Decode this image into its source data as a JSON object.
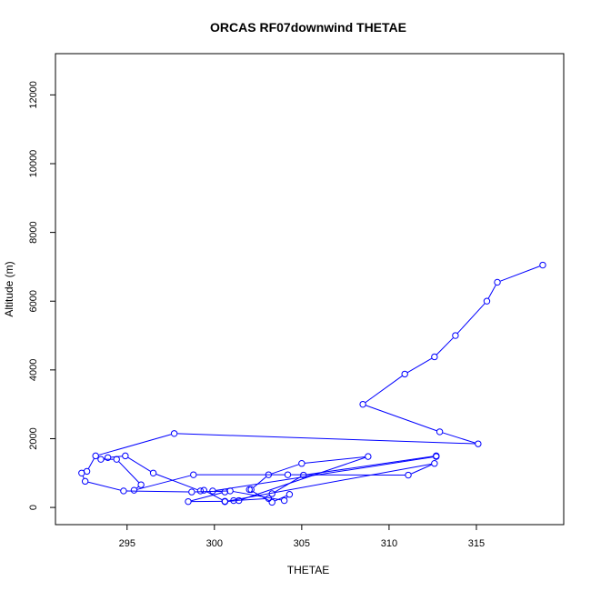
{
  "chart_data": {
    "type": "line",
    "title": "ORCAS RF07downwind THETAE",
    "xlabel": "THETAE",
    "ylabel": "Altitude (m)",
    "xlim": [
      290.9,
      320.0
    ],
    "ylim": [
      -500,
      13200
    ],
    "xticks": [
      295,
      300,
      305,
      310,
      315
    ],
    "yticks": [
      0,
      2000,
      4000,
      6000,
      8000,
      10000,
      12000
    ],
    "series_color": "#0000ff",
    "series": [
      {
        "markers": "open-circle",
        "x": [
          318.8,
          316.2,
          315.6,
          313.8,
          312.6,
          310.9,
          308.5,
          312.9,
          315.1,
          297.7,
          293.2,
          292.7,
          292.4,
          292.6,
          294.8,
          298.7,
          300.9,
          304.0,
          304.3,
          303.3,
          302.0,
          302.1,
          303.1,
          305.0,
          308.8,
          301.4,
          300.6,
          301.1,
          303.1,
          303.3,
          305.1,
          312.7,
          312.7,
          299.9,
          300.6,
          298.5,
          300.6,
          299.4,
          299.2,
          296.5,
          294.9,
          293.9,
          293.5,
          294.4,
          295.8,
          295.4,
          298.8,
          304.2,
          311.1,
          312.6,
          300.6
        ],
        "y": [
          7050,
          6550,
          6000,
          5000,
          4380,
          3880,
          3000,
          2200,
          1850,
          2150,
          1500,
          1050,
          1000,
          760,
          480,
          450,
          480,
          200,
          380,
          150,
          520,
          520,
          950,
          1280,
          1480,
          200,
          170,
          200,
          260,
          400,
          940,
          1500,
          1480,
          480,
          450,
          170,
          180,
          500,
          480,
          1000,
          1500,
          1450,
          1400,
          1400,
          660,
          500,
          950,
          950,
          940,
          1280,
          170
        ]
      }
    ]
  }
}
